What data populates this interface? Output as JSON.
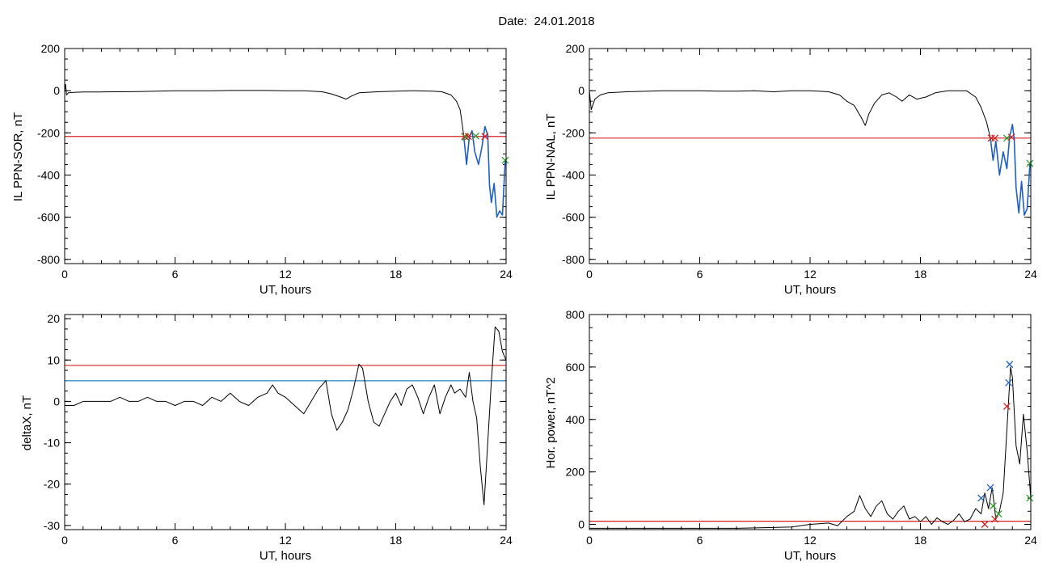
{
  "page_title": "Date:  24.01.2018",
  "chart_data": [
    {
      "id": "p1",
      "type": "line",
      "xlabel": "UT, hours",
      "ylabel": "IL PPN-SOR, nT",
      "xlim": [
        0,
        24
      ],
      "ylim": [
        -820,
        200
      ],
      "xticks": [
        0,
        6,
        12,
        18,
        24
      ],
      "yticks": [
        -800,
        -600,
        -400,
        -200,
        0,
        200
      ],
      "threshold_lines": [
        {
          "y": -217,
          "color": "#d62020"
        }
      ],
      "series": [
        {
          "color": "#000000",
          "x": [
            0,
            0.05,
            0.1,
            0.2,
            0.5,
            1,
            2,
            3,
            4,
            5,
            6,
            7,
            8,
            9,
            10,
            11,
            12,
            13,
            14,
            14.5,
            15,
            15.3,
            15.6,
            16,
            17,
            18,
            19,
            20,
            20.5,
            21,
            21.3,
            21.5,
            21.6,
            21.7
          ],
          "y": [
            0,
            30,
            -20,
            -10,
            -8,
            -6,
            -6,
            -5,
            -4,
            -2,
            0,
            0,
            0,
            1,
            1,
            1,
            0,
            0,
            -5,
            -15,
            -30,
            -40,
            -25,
            -10,
            -5,
            -2,
            0,
            -2,
            -5,
            -20,
            -50,
            -90,
            -150,
            -217
          ]
        },
        {
          "color": "#1f5fbf",
          "x": [
            21.7,
            21.85,
            22.0,
            22.15,
            22.3,
            22.5,
            22.7,
            22.85,
            23.0,
            23.1,
            23.2,
            23.35,
            23.5,
            23.65,
            23.8,
            23.95,
            24.0
          ],
          "y": [
            -217,
            -350,
            -220,
            -190,
            -290,
            -350,
            -260,
            -170,
            -210,
            -450,
            -530,
            -440,
            -600,
            -570,
            -590,
            -330,
            -330
          ]
        }
      ],
      "markers": [
        {
          "x": 21.75,
          "y": -217,
          "color": "#d62020"
        },
        {
          "x": 21.8,
          "y": -220,
          "color": "#2ca02c"
        },
        {
          "x": 21.95,
          "y": -217,
          "color": "#d62020"
        },
        {
          "x": 22.35,
          "y": -215,
          "color": "#2ca02c"
        },
        {
          "x": 22.85,
          "y": -217,
          "color": "#d62020"
        },
        {
          "x": 23.95,
          "y": -330,
          "color": "#2ca02c"
        }
      ]
    },
    {
      "id": "p2",
      "type": "line",
      "xlabel": "UT, hours",
      "ylabel": "IL PPN-NAL, nT",
      "xlim": [
        0,
        24
      ],
      "ylim": [
        -820,
        200
      ],
      "xticks": [
        0,
        6,
        12,
        18,
        24
      ],
      "yticks": [
        -800,
        -600,
        -400,
        -200,
        0,
        200
      ],
      "threshold_lines": [
        {
          "y": -225,
          "color": "#d62020"
        }
      ],
      "series": [
        {
          "color": "#000000",
          "x": [
            0,
            0.1,
            0.3,
            0.6,
            1,
            2,
            3,
            4,
            5,
            6,
            7,
            8,
            9,
            10,
            11,
            12,
            13,
            13.6,
            14,
            14.4,
            14.8,
            15.0,
            15.2,
            15.5,
            15.9,
            16.3,
            16.7,
            17,
            17.4,
            17.8,
            18.3,
            18.8,
            19.5,
            20.5,
            21,
            21.3,
            21.6,
            21.8
          ],
          "y": [
            0,
            -90,
            -40,
            -20,
            -10,
            -5,
            -3,
            0,
            0,
            0,
            -2,
            -2,
            0,
            -5,
            0,
            0,
            -5,
            -20,
            -50,
            -70,
            -130,
            -165,
            -110,
            -60,
            -20,
            -10,
            -30,
            -50,
            -20,
            -40,
            -30,
            -10,
            0,
            0,
            -30,
            -80,
            -150,
            -225
          ]
        },
        {
          "color": "#1f5fbf",
          "x": [
            21.8,
            21.95,
            22.1,
            22.3,
            22.5,
            22.7,
            22.85,
            23.0,
            23.1,
            23.2,
            23.35,
            23.5,
            23.65,
            23.8,
            23.95,
            24.0
          ],
          "y": [
            -225,
            -330,
            -240,
            -400,
            -290,
            -370,
            -220,
            -160,
            -230,
            -460,
            -580,
            -430,
            -590,
            -560,
            -350,
            -340
          ]
        }
      ],
      "markers": [
        {
          "x": 21.85,
          "y": -225,
          "color": "#d62020"
        },
        {
          "x": 22.05,
          "y": -225,
          "color": "#d62020"
        },
        {
          "x": 22.7,
          "y": -225,
          "color": "#2ca02c"
        },
        {
          "x": 22.95,
          "y": -220,
          "color": "#d62020"
        },
        {
          "x": 23.95,
          "y": -345,
          "color": "#2ca02c"
        }
      ]
    },
    {
      "id": "p3",
      "type": "line",
      "xlabel": "UT, hours",
      "ylabel": "deltaX, nT",
      "xlim": [
        0,
        24
      ],
      "ylim": [
        -31,
        21
      ],
      "xticks": [
        0,
        6,
        12,
        18,
        24
      ],
      "yticks": [
        -30,
        -20,
        -10,
        0,
        10,
        20
      ],
      "threshold_lines": [
        {
          "y": 8.7,
          "color": "#d62020"
        },
        {
          "y": 5,
          "color": "#1f7fbf"
        }
      ],
      "series": [
        {
          "color": "#000000",
          "x": [
            0,
            0.5,
            1,
            1.5,
            2,
            2.5,
            3,
            3.5,
            4,
            4.5,
            5,
            5.5,
            6,
            6.5,
            7,
            7.5,
            8,
            8.5,
            9,
            9.5,
            10,
            10.5,
            11,
            11.3,
            11.6,
            12,
            12.5,
            13,
            13.4,
            13.8,
            14.2,
            14.5,
            14.8,
            15.1,
            15.4,
            15.7,
            16.0,
            16.2,
            16.5,
            16.8,
            17.1,
            17.4,
            17.7,
            18.0,
            18.3,
            18.6,
            18.9,
            19.2,
            19.5,
            19.8,
            20.1,
            20.4,
            20.7,
            21.0,
            21.2,
            21.5,
            21.8,
            22.0,
            22.2,
            22.4,
            22.6,
            22.8,
            23.0,
            23.2,
            23.4,
            23.6,
            23.8,
            24.0
          ],
          "y": [
            -1,
            -1,
            0,
            0,
            0,
            0,
            1,
            0,
            0,
            1,
            0,
            0,
            -1,
            0,
            0,
            -1,
            1,
            0,
            2,
            0,
            -1,
            1,
            2,
            4,
            2,
            1,
            -1,
            -3,
            0,
            3,
            5,
            -3,
            -7,
            -5,
            -2,
            3,
            9,
            8,
            0,
            -5,
            -6,
            -3,
            0,
            2,
            -1,
            3,
            4,
            1,
            -3,
            1,
            4,
            -3,
            1,
            4,
            2,
            3,
            1,
            7,
            0,
            -4,
            -16,
            -25,
            -10,
            5,
            18,
            17,
            12,
            10
          ]
        }
      ],
      "markers": []
    },
    {
      "id": "p4",
      "type": "line",
      "xlabel": "UT, hours",
      "ylabel": "Hor. power, nT^2",
      "xlim": [
        0,
        24
      ],
      "ylim": [
        -20,
        800
      ],
      "xticks": [
        0,
        6,
        12,
        18,
        24
      ],
      "yticks": [
        0,
        200,
        400,
        600,
        800
      ],
      "threshold_lines": [
        {
          "y": 12,
          "color": "#d62020"
        }
      ],
      "series": [
        {
          "color": "#000000",
          "x": [
            0,
            2,
            4,
            6,
            8,
            10,
            11,
            12,
            13,
            13.5,
            14,
            14.4,
            14.7,
            15.0,
            15.3,
            15.6,
            15.9,
            16.2,
            16.5,
            16.8,
            17.1,
            17.4,
            17.7,
            18.0,
            18.3,
            18.6,
            18.9,
            19.2,
            19.5,
            19.8,
            20.1,
            20.4,
            20.7,
            21.0,
            21.3,
            21.5,
            21.7,
            21.9,
            22.1,
            22.3,
            22.5,
            22.65,
            22.8,
            22.9,
            23.0,
            23.2,
            23.4,
            23.6,
            23.8,
            24.0
          ],
          "y": [
            -15,
            -15,
            -15,
            -15,
            -15,
            -12,
            -10,
            0,
            5,
            -5,
            30,
            50,
            110,
            60,
            30,
            70,
            90,
            40,
            20,
            50,
            70,
            20,
            30,
            10,
            30,
            0,
            25,
            10,
            0,
            15,
            40,
            10,
            20,
            60,
            40,
            120,
            60,
            140,
            20,
            50,
            120,
            300,
            480,
            600,
            560,
            300,
            230,
            420,
            280,
            100
          ]
        }
      ],
      "markers": [
        {
          "x": 21.3,
          "y": 100,
          "color": "#1f5fbf"
        },
        {
          "x": 21.5,
          "y": 0,
          "color": "#d62020"
        },
        {
          "x": 21.8,
          "y": 140,
          "color": "#1f5fbf"
        },
        {
          "x": 21.95,
          "y": 70,
          "color": "#2ca02c"
        },
        {
          "x": 22.05,
          "y": 20,
          "color": "#d62020"
        },
        {
          "x": 22.25,
          "y": 40,
          "color": "#2ca02c"
        },
        {
          "x": 22.7,
          "y": 450,
          "color": "#d62020"
        },
        {
          "x": 22.8,
          "y": 540,
          "color": "#1f5fbf"
        },
        {
          "x": 22.85,
          "y": 610,
          "color": "#1f5fbf"
        },
        {
          "x": 23.95,
          "y": 100,
          "color": "#2ca02c"
        }
      ]
    }
  ]
}
